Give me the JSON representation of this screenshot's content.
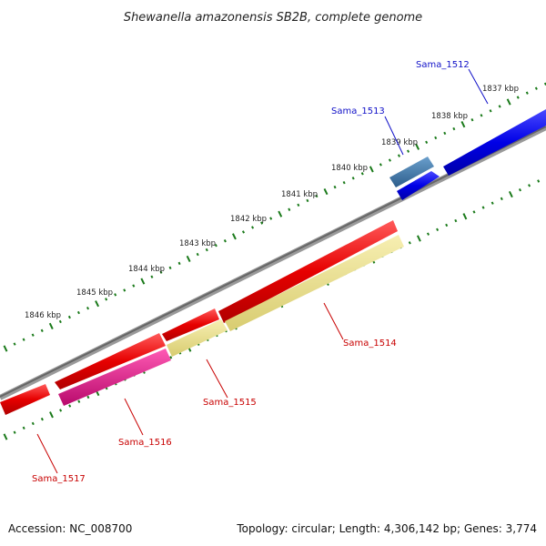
{
  "title": "Shewanella amazonensis SB2B, complete genome",
  "footer": {
    "accession": "Accession: NC_008700",
    "summary": "Topology: circular; Length: 4,306,142 bp; Genes: 3,774"
  },
  "ticks": [
    "1837 kbp",
    "1838 kbp",
    "1839 kbp",
    "1840 kbp",
    "1841 kbp",
    "1842 kbp",
    "1843 kbp",
    "1844 kbp",
    "1845 kbp",
    "1846 kbp"
  ],
  "genes": [
    {
      "name": "Sama_1512",
      "color": "#0000e6",
      "strand": "forward"
    },
    {
      "name": "Sama_1513",
      "color": "#0000e6",
      "strand": "forward"
    },
    {
      "name": "Sama_1514",
      "color": "#e60000",
      "strand": "reverse"
    },
    {
      "name": "Sama_1515",
      "color": "#e60000",
      "strand": "reverse"
    },
    {
      "name": "Sama_1516",
      "color": "#e60000",
      "strand": "reverse"
    },
    {
      "name": "Sama_1517",
      "color": "#e60000",
      "strand": "reverse"
    }
  ],
  "colors": {
    "backbone": "#7a7a7a",
    "ticks": "#1a7a1a",
    "cds_forward": "#0000e6",
    "cds_reverse": "#e60000",
    "feature_steelblue": "#3a75a8",
    "feature_khaki": "#ede28e",
    "feature_magenta": "#e6148c",
    "label_forward": "#1010c8",
    "label_reverse": "#c80000"
  }
}
